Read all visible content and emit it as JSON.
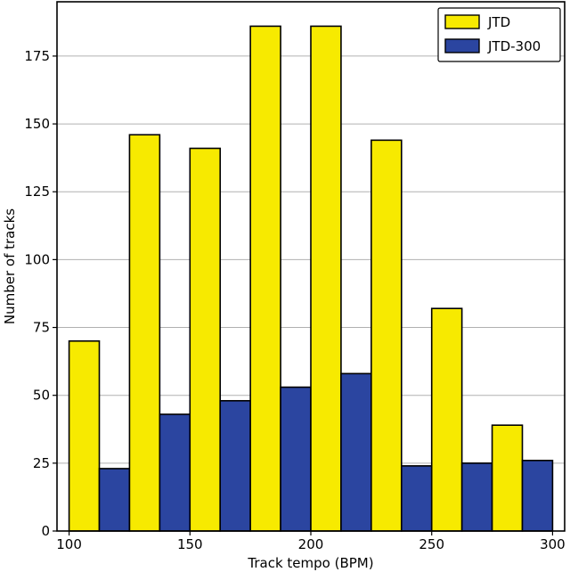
{
  "chart_data": {
    "type": "bar",
    "title": "",
    "xlabel": "Track tempo (BPM)",
    "ylabel": "Number of tracks",
    "xlim": [
      95,
      305
    ],
    "ylim": [
      0,
      195
    ],
    "bin_edges": [
      100,
      125,
      150,
      175,
      200,
      225,
      250,
      275,
      300
    ],
    "xticks": [
      100,
      150,
      200,
      250,
      300
    ],
    "yticks": [
      0,
      25,
      50,
      75,
      100,
      125,
      150,
      175
    ],
    "grid": "y",
    "legend_position": "top-right",
    "series": [
      {
        "name": "JTD",
        "color": "#f7ea00",
        "values": [
          70,
          146,
          141,
          186,
          186,
          144,
          82,
          39
        ]
      },
      {
        "name": "JTD-300",
        "color": "#2b45a0",
        "values": [
          23,
          43,
          48,
          53,
          58,
          24,
          25,
          26
        ]
      }
    ]
  }
}
